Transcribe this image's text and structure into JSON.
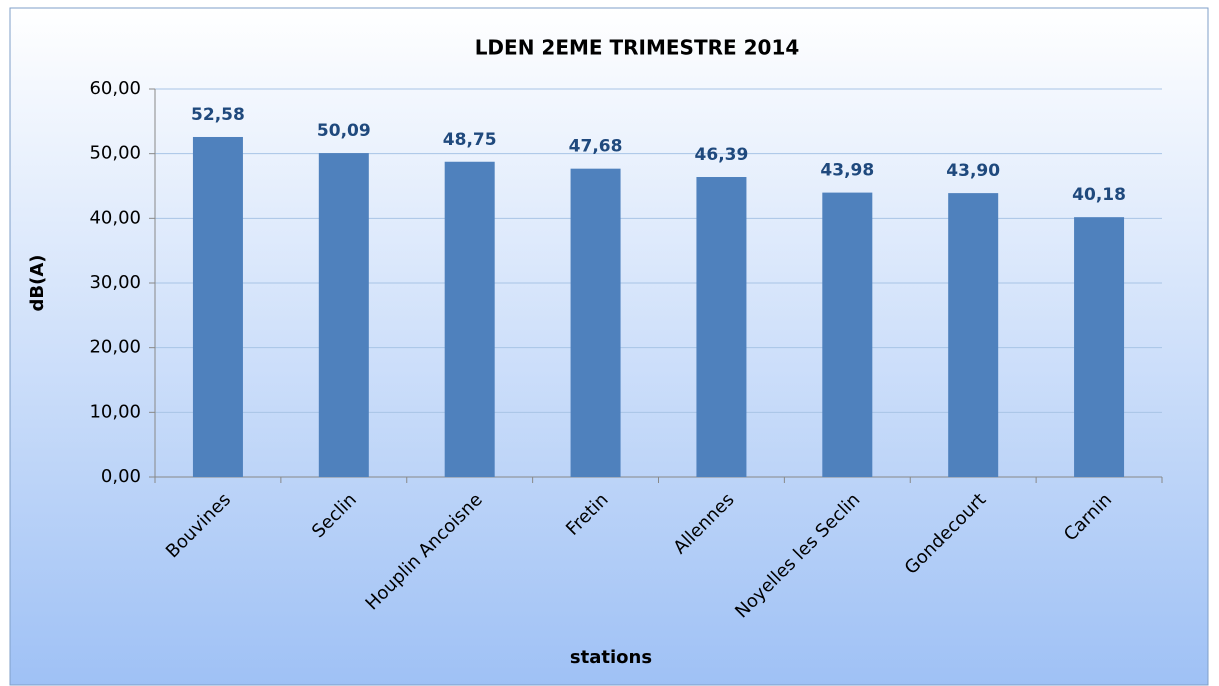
{
  "chart_data": {
    "type": "bar",
    "title": "LDEN 2EME TRIMESTRE 2014",
    "x_label": "stations",
    "y_label": "dB(A)",
    "categories": [
      "Bouvines",
      "Seclin",
      "Houplin Ancoisne",
      "Fretin",
      "Allennes",
      "Noyelles les Seclin",
      "Gondecourt",
      "Carnin"
    ],
    "values": [
      52.58,
      50.09,
      48.75,
      47.68,
      46.39,
      43.98,
      43.9,
      40.18
    ],
    "value_labels": [
      "52,58",
      "50,09",
      "48,75",
      "47,68",
      "46,39",
      "43,98",
      "43,90",
      "40,18"
    ],
    "color": "#4f81bd",
    "ylim": [
      0,
      60
    ],
    "yticks": [
      {
        "value": 0,
        "label": "0,00"
      },
      {
        "value": 10,
        "label": "10,00"
      },
      {
        "value": 20,
        "label": "20,00"
      },
      {
        "value": 30,
        "label": "30,00"
      },
      {
        "value": 40,
        "label": "40,00"
      },
      {
        "value": 50,
        "label": "50,00"
      },
      {
        "value": 60,
        "label": "60,00"
      }
    ],
    "grid": true
  }
}
